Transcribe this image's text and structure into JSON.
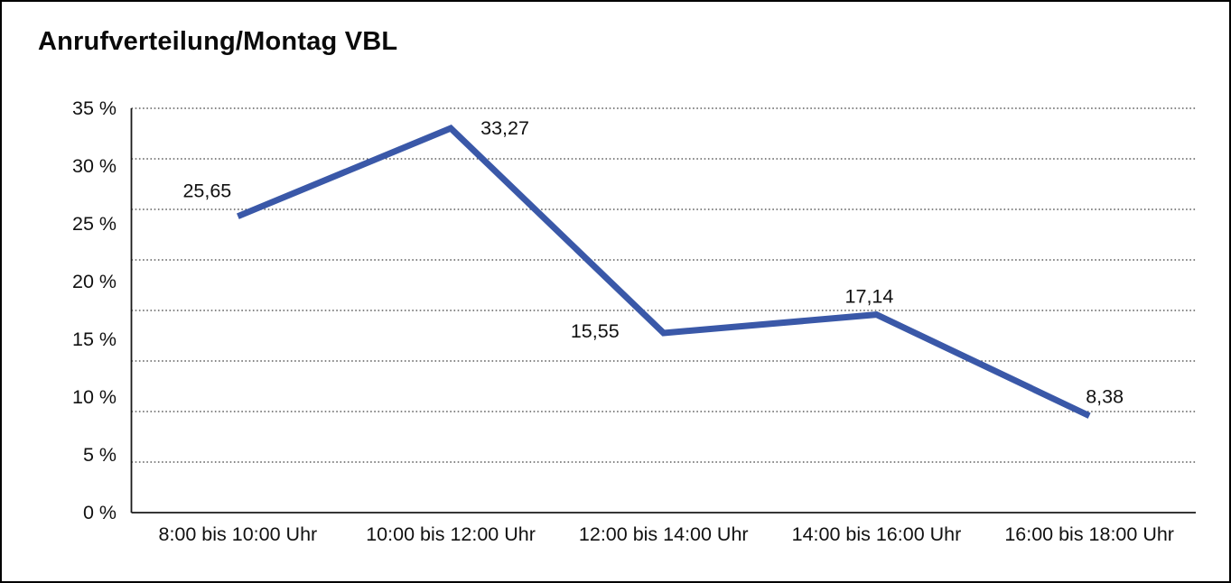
{
  "window": {
    "background": "#ffffff",
    "border_color": "#000000"
  },
  "chart_data": {
    "type": "line",
    "title": "Anrufverteilung/Montag VBL",
    "categories": [
      "8:00 bis 10:00 Uhr",
      "10:00 bis 12:00 Uhr",
      "12:00 bis 14:00 Uhr",
      "14:00 bis 16:00 Uhr",
      "16:00 bis 18:00 Uhr"
    ],
    "values": [
      25.65,
      33.27,
      15.55,
      17.14,
      8.38
    ],
    "point_labels": [
      "25,65",
      "33,27",
      "15,55",
      "17,14",
      "8,38"
    ],
    "xlabel": "",
    "ylabel": "",
    "ylim": [
      0,
      35
    ],
    "y_ticks": [
      "0 %",
      "5 %",
      "10 %",
      "15 %",
      "20 %",
      "25 %",
      "30 %",
      "35 %"
    ],
    "legend": "none",
    "grid": "horizontal-dotted",
    "line_color": "#3A58A8",
    "axis_color": "#1a1a1a",
    "grid_color": "#3f3f3f",
    "text_color": "#111111"
  }
}
